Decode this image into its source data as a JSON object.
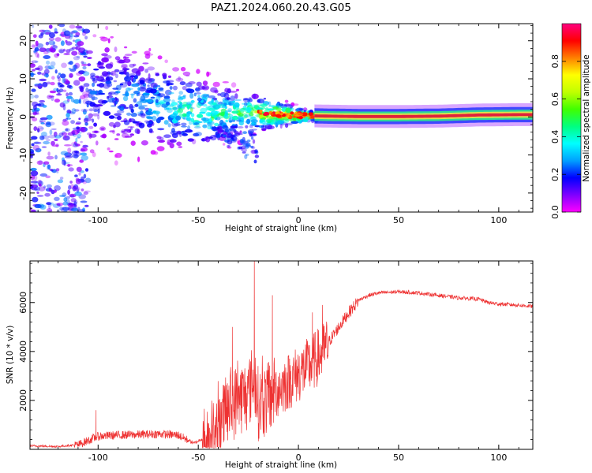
{
  "figure": {
    "title": "PAZ1.2024.060.20.43.G05"
  },
  "chart_data": [
    {
      "type": "heatmap",
      "xlabel": "Height of straight line (km)",
      "ylabel": "Frequency (Hz)",
      "xlim": [
        -134,
        117
      ],
      "ylim": [
        -25,
        24.5
      ],
      "xticks": [
        -100,
        -50,
        0,
        50,
        100
      ],
      "xtick_labels": [
        "-100",
        "-50",
        "0",
        "50",
        "100"
      ],
      "yticks": [
        -20,
        -10,
        0,
        10,
        20
      ],
      "ytick_labels": [
        "-20",
        "-10",
        "0",
        "10",
        "20"
      ],
      "ridge": {
        "x": [
          -95,
          -85,
          -75,
          -65,
          -55,
          -45,
          -35,
          -25,
          -15,
          -5,
          5,
          15,
          30,
          50,
          70,
          90,
          110
        ],
        "y": [
          6,
          5,
          4,
          2.5,
          1.5,
          0.5,
          1,
          1.2,
          0.8,
          0.5,
          0.3,
          0.2,
          0.1,
          0.1,
          0.2,
          0.5,
          0.6
        ],
        "amplitude": [
          0.25,
          0.3,
          0.35,
          0.4,
          0.5,
          0.55,
          0.5,
          0.55,
          0.8,
          0.9,
          0.92,
          0.95,
          0.8,
          0.7,
          0.75,
          0.95,
          0.85
        ]
      },
      "colorbar": {
        "label": "Normalized spectral amplitude",
        "range": [
          0,
          1
        ],
        "ticks": [
          0,
          0.2,
          0.4,
          0.6,
          0.8
        ],
        "tick_labels": [
          "0.0",
          "0.2",
          "0.4",
          "0.6",
          "0.8"
        ],
        "colormap": [
          "#ff00ff",
          "#7f00ff",
          "#0000ff",
          "#00a0ff",
          "#00ffff",
          "#00ff80",
          "#40ff00",
          "#c0ff00",
          "#ffff00",
          "#ff8000",
          "#ff0000",
          "#ff0080"
        ]
      },
      "grid": false
    },
    {
      "type": "line",
      "xlabel": "Height of straight line (km)",
      "ylabel": "SNR (10 * v/v)",
      "xlim": [
        -134,
        117
      ],
      "ylim": [
        0,
        7700
      ],
      "xticks": [
        -100,
        -50,
        0,
        50,
        100
      ],
      "xtick_labels": [
        "-100",
        "-50",
        "0",
        "50",
        "100"
      ],
      "yticks": [
        2000,
        4000,
        6000
      ],
      "ytick_labels": [
        "2000",
        "4000",
        "6000"
      ],
      "series": [
        {
          "color": "#ee3333",
          "x": [
            -134,
            -120,
            -110,
            -100,
            -90,
            -80,
            -70,
            -60,
            -52,
            -45,
            -40,
            -35,
            -30,
            -25,
            -22,
            -20,
            -15,
            -10,
            -5,
            0,
            5,
            10,
            15,
            20,
            25,
            30,
            35,
            40,
            50,
            60,
            70,
            80,
            90,
            95,
            100,
            110,
            117
          ],
          "y": [
            150,
            120,
            200,
            550,
            600,
            620,
            650,
            600,
            250,
            600,
            1000,
            1800,
            2200,
            2400,
            3200,
            2000,
            2200,
            2600,
            2900,
            3200,
            3500,
            3900,
            4400,
            5000,
            5600,
            6100,
            6300,
            6400,
            6450,
            6400,
            6300,
            6200,
            6150,
            6000,
            5950,
            5900,
            5850
          ]
        }
      ],
      "spikes": [
        {
          "x": -101,
          "y": 1600
        },
        {
          "x": -22,
          "y": 7700
        },
        {
          "x": -33,
          "y": 5000
        },
        {
          "x": -13,
          "y": 6300
        },
        {
          "x": 7,
          "y": 5600
        },
        {
          "x": 12,
          "y": 5900
        }
      ],
      "grid": false
    }
  ]
}
